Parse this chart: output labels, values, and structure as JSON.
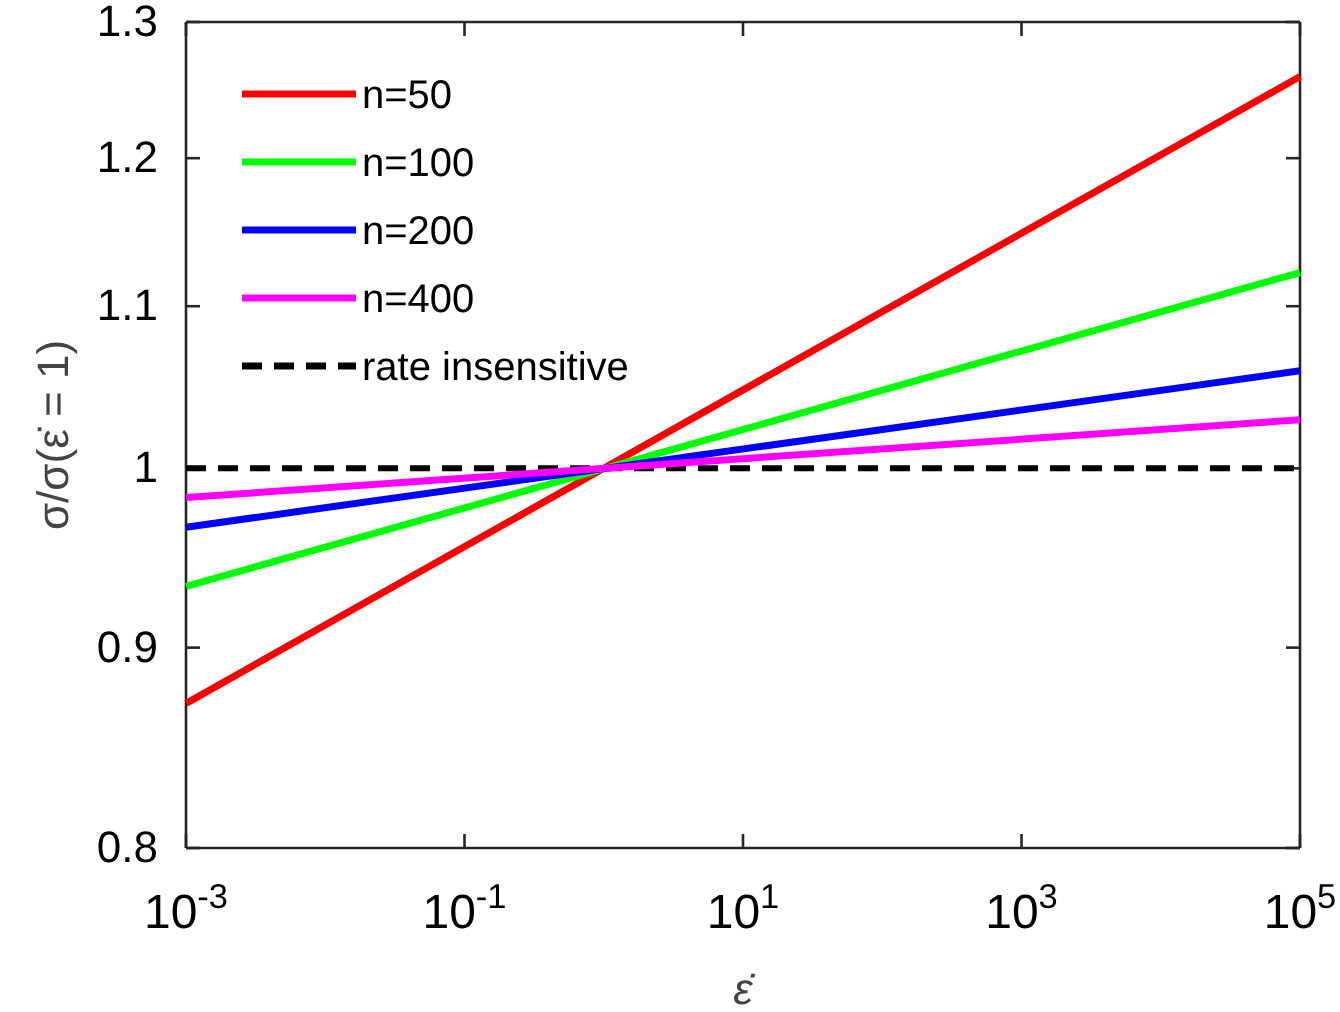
{
  "chart_data": {
    "type": "line",
    "xlabel": "ε̇",
    "ylabel": "σ/σ(ε̇ = 1)",
    "log": "xy",
    "x": [
      0.001,
      100000
    ],
    "series": [
      {
        "name": "n=50",
        "color": "#ff0000",
        "values": [
          0.871,
          1.259
        ]
      },
      {
        "name": "n=100",
        "color": "#00ff00",
        "values": [
          0.933,
          1.122
        ]
      },
      {
        "name": "n=200",
        "color": "#0000ff",
        "values": [
          0.966,
          1.059
        ]
      },
      {
        "name": "n=400",
        "color": "#ff00ff",
        "values": [
          0.983,
          1.029
        ]
      }
    ],
    "ref_lines": [
      {
        "axis": "y",
        "value": 1,
        "label": "rate insensitive",
        "color": "#000000",
        "line_style": "dashed"
      }
    ],
    "xlim": [
      0.001,
      100000
    ],
    "ylim": [
      0.8,
      1.3
    ],
    "xticks": [
      {
        "value": 0.001,
        "label": "10$^{-3}$"
      },
      {
        "value": 0.1,
        "label": "10$^{-1}$"
      },
      {
        "value": 10,
        "label": "10$^{1}$"
      },
      {
        "value": 1000,
        "label": "10$^{3}$"
      },
      {
        "value": 100000,
        "label": "10$^{5}$"
      }
    ],
    "yticks": [
      0.8,
      0.9,
      1,
      1.1,
      1.2,
      1.3
    ],
    "grid": false,
    "legend": "top left",
    "marker": "none",
    "line_style": "solid"
  }
}
